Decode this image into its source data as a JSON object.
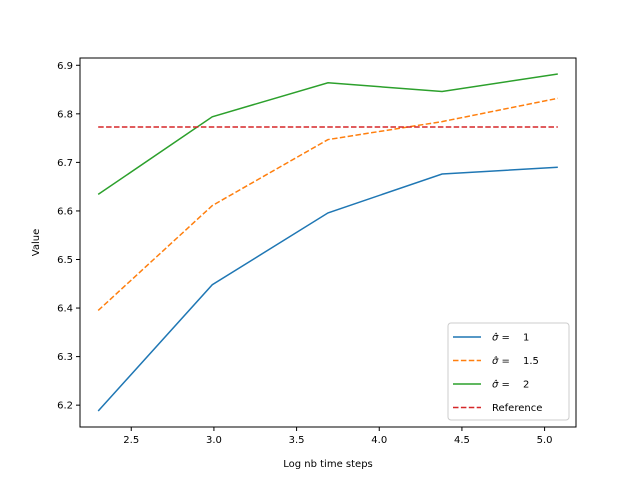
{
  "chart_data": {
    "type": "line",
    "title": "",
    "xlabel": "Log nb time  steps",
    "ylabel": "Value",
    "xlim": [
      2.19,
      5.19
    ],
    "ylim": [
      6.155,
      6.915
    ],
    "xticks": [
      2.5,
      3.0,
      3.5,
      4.0,
      4.5,
      5.0
    ],
    "xtick_labels": [
      "2.5",
      "3.0",
      "3.5",
      "4.0",
      "4.5",
      "5.0"
    ],
    "yticks": [
      6.2,
      6.3,
      6.4,
      6.5,
      6.6,
      6.7,
      6.8,
      6.9
    ],
    "ytick_labels": [
      "6.2",
      "6.3",
      "6.4",
      "6.5",
      "6.6",
      "6.7",
      "6.8",
      "6.9"
    ],
    "grid": false,
    "legend_position": "bottom-right",
    "x": [
      2.3,
      2.99,
      3.69,
      4.38,
      5.08
    ],
    "series": [
      {
        "name": "σ̂ = 1",
        "legend_prefix": "σ̂ = ",
        "legend_value": "1",
        "values": [
          6.188,
          6.448,
          6.596,
          6.676,
          6.69
        ],
        "color": "#1f77b4",
        "dash": "solid"
      },
      {
        "name": "σ̂ = 1.5",
        "legend_prefix": "σ̂ = ",
        "legend_value": "1.5",
        "values": [
          6.395,
          6.611,
          6.747,
          6.784,
          6.832
        ],
        "color": "#ff7f0e",
        "dash": "dashed"
      },
      {
        "name": "σ̂ = 2",
        "legend_prefix": "σ̂ = ",
        "legend_value": "2",
        "values": [
          6.634,
          6.794,
          6.864,
          6.846,
          6.882
        ],
        "color": "#2ca02c",
        "dash": "solid"
      },
      {
        "name": "Reference",
        "legend_prefix": "",
        "legend_value": "Reference",
        "values": [
          6.773,
          6.773,
          6.773,
          6.773,
          6.773
        ],
        "color": "#d62728",
        "dash": "dashed"
      }
    ]
  }
}
